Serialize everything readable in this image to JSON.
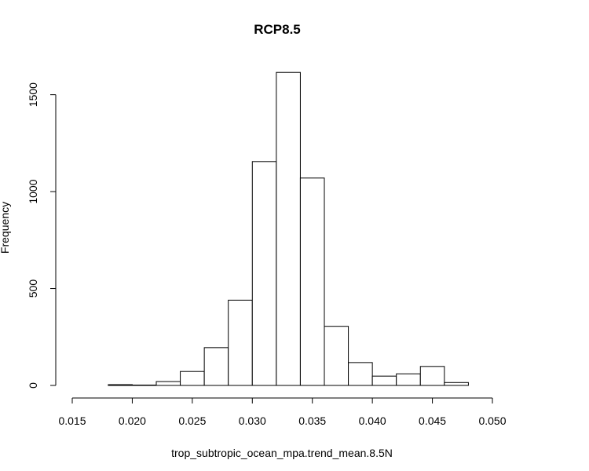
{
  "chart_data": {
    "type": "bar",
    "title": "RCP8.5",
    "xlabel": "trop_subtropic_ocean_mpa.trend_mean.8.5N",
    "ylabel": "Frequency",
    "xlim": [
      0.015,
      0.05
    ],
    "ylim": [
      0,
      1620
    ],
    "grid": false,
    "x_ticks": [
      0.015,
      0.02,
      0.025,
      0.03,
      0.035,
      0.04,
      0.045,
      0.05
    ],
    "x_tick_labels": [
      "0.015",
      "0.020",
      "0.025",
      "0.030",
      "0.035",
      "0.040",
      "0.045",
      "0.050"
    ],
    "y_ticks": [
      0,
      500,
      1000,
      1500
    ],
    "y_tick_labels": [
      "0",
      "500",
      "1000",
      "1500"
    ],
    "bins": [
      {
        "x0": 0.018,
        "x1": 0.02,
        "count": 4
      },
      {
        "x0": 0.02,
        "x1": 0.022,
        "count": 2
      },
      {
        "x0": 0.022,
        "x1": 0.024,
        "count": 20
      },
      {
        "x0": 0.024,
        "x1": 0.026,
        "count": 72
      },
      {
        "x0": 0.026,
        "x1": 0.028,
        "count": 195
      },
      {
        "x0": 0.028,
        "x1": 0.03,
        "count": 440
      },
      {
        "x0": 0.03,
        "x1": 0.032,
        "count": 1155
      },
      {
        "x0": 0.032,
        "x1": 0.034,
        "count": 1615
      },
      {
        "x0": 0.034,
        "x1": 0.036,
        "count": 1070
      },
      {
        "x0": 0.036,
        "x1": 0.038,
        "count": 305
      },
      {
        "x0": 0.038,
        "x1": 0.04,
        "count": 118
      },
      {
        "x0": 0.04,
        "x1": 0.042,
        "count": 48
      },
      {
        "x0": 0.042,
        "x1": 0.044,
        "count": 60
      },
      {
        "x0": 0.044,
        "x1": 0.046,
        "count": 98
      },
      {
        "x0": 0.046,
        "x1": 0.048,
        "count": 15
      }
    ]
  }
}
